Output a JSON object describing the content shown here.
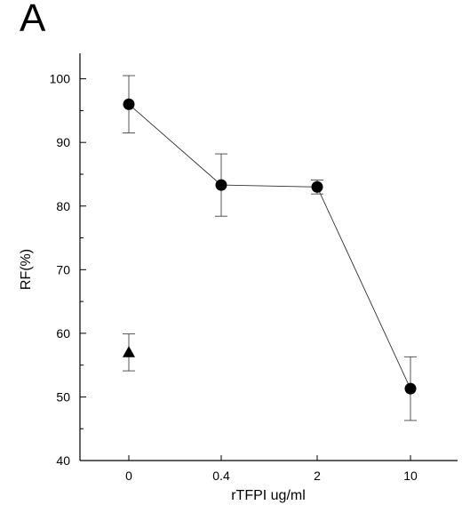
{
  "panel_label": "A",
  "chart_data": {
    "type": "scatter",
    "title": "",
    "xlabel": "rTFPI ug/ml",
    "ylabel": "RF(%)",
    "categories": [
      "0",
      "0.4",
      "2",
      "10"
    ],
    "ylim": [
      40,
      104
    ],
    "yticks": [
      40,
      50,
      60,
      70,
      80,
      90,
      100
    ],
    "grid": false,
    "legend": "none",
    "series": [
      {
        "marker": "circle",
        "connected": true,
        "points": [
          {
            "x": "0",
            "y": 96.0,
            "err": 4.5
          },
          {
            "x": "0.4",
            "y": 83.3,
            "err": 4.9
          },
          {
            "x": "2",
            "y": 83.0,
            "err": 1.1
          },
          {
            "x": "10",
            "y": 51.3,
            "err": 5.0
          }
        ]
      },
      {
        "marker": "triangle",
        "connected": false,
        "points": [
          {
            "x": "0",
            "y": 57.0,
            "err": 2.9
          }
        ]
      }
    ]
  }
}
